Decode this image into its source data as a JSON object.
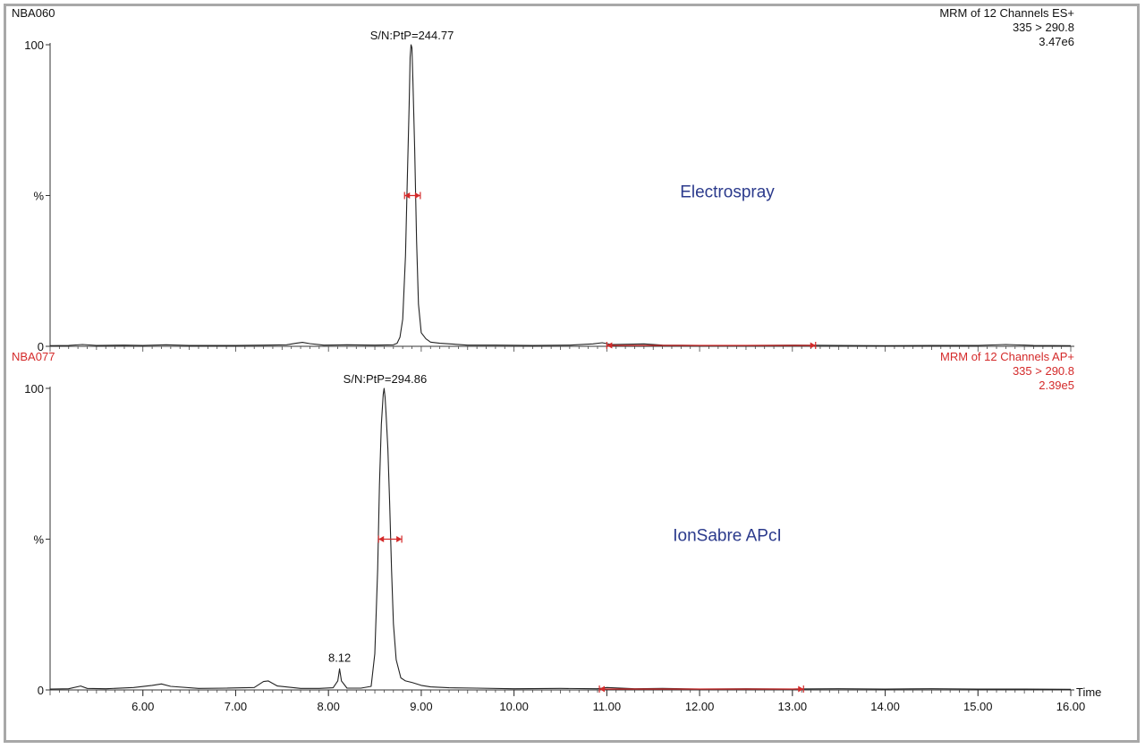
{
  "chart_data": [
    {
      "type": "line",
      "sample": "NBA060",
      "header": [
        "MRM of 12 Channels ES+",
        "335 > 290.8",
        "3.47e6"
      ],
      "header_color": "#111111",
      "annotation": "Electrospray",
      "annotation_color": "#2b3a8c",
      "y_ticks": [
        "100",
        "%",
        "0"
      ],
      "ylim": [
        0,
        100
      ],
      "peak_label": "S/N:PtP=244.77",
      "peak_label_x": 8.9,
      "series": {
        "x": [
          5.0,
          5.2,
          5.35,
          5.5,
          5.8,
          6.0,
          6.25,
          6.5,
          6.8,
          7.0,
          7.3,
          7.55,
          7.65,
          7.72,
          7.8,
          7.95,
          8.2,
          8.5,
          8.7,
          8.74,
          8.77,
          8.8,
          8.83,
          8.85,
          8.87,
          8.88,
          8.89,
          8.9,
          8.91,
          8.93,
          8.95,
          8.97,
          9.0,
          9.05,
          9.1,
          9.2,
          9.35,
          9.5,
          9.8,
          10.2,
          10.6,
          10.85,
          10.95,
          11.05,
          11.4,
          11.6,
          12.0,
          12.5,
          13.0,
          13.5,
          14.0,
          14.5,
          15.0,
          15.3,
          15.6,
          16.0
        ],
        "y": [
          0.2,
          0.3,
          0.6,
          0.3,
          0.4,
          0.3,
          0.5,
          0.3,
          0.3,
          0.3,
          0.4,
          0.5,
          1.0,
          1.3,
          0.9,
          0.4,
          0.5,
          0.4,
          0.5,
          1.0,
          3.0,
          9.0,
          30.0,
          55.0,
          80.0,
          96.0,
          100.0,
          99.0,
          88.0,
          65.0,
          35.0,
          14.0,
          4.5,
          2.5,
          1.4,
          1.0,
          0.7,
          0.4,
          0.4,
          0.3,
          0.4,
          0.8,
          1.2,
          0.6,
          0.8,
          0.4,
          0.3,
          0.3,
          0.4,
          0.3,
          0.2,
          0.3,
          0.3,
          0.6,
          0.3,
          0.2
        ]
      },
      "width_marker": [
        8.82,
        8.99
      ],
      "noise_marker": [
        11.0,
        13.25
      ]
    },
    {
      "type": "line",
      "sample": "NBA077",
      "header": [
        "MRM of 12 Channels AP+",
        "335 > 290.8",
        "2.39e5"
      ],
      "header_color": "#d42a2a",
      "annotation": "IonSabre APcI",
      "annotation_color": "#2b3a8c",
      "y_ticks": [
        "100",
        "%",
        "0"
      ],
      "ylim": [
        0,
        100
      ],
      "peak_label": "S/N:PtP=294.86",
      "peak_label_x": 8.61,
      "minor_label": "8.12",
      "minor_label_x": 8.12,
      "series": {
        "x": [
          5.0,
          5.2,
          5.33,
          5.4,
          5.6,
          5.9,
          6.1,
          6.2,
          6.3,
          6.6,
          6.9,
          7.2,
          7.3,
          7.35,
          7.45,
          7.7,
          7.9,
          8.05,
          8.1,
          8.12,
          8.14,
          8.2,
          8.35,
          8.46,
          8.5,
          8.53,
          8.55,
          8.57,
          8.59,
          8.6,
          8.61,
          8.62,
          8.64,
          8.66,
          8.68,
          8.7,
          8.73,
          8.78,
          8.83,
          8.9,
          9.0,
          9.1,
          9.3,
          9.6,
          10.0,
          10.5,
          10.9,
          11.0,
          11.3,
          11.6,
          12.0,
          12.5,
          13.0,
          13.5,
          14.0,
          14.5,
          15.0,
          15.5,
          16.0
        ],
        "y": [
          0.3,
          0.4,
          1.3,
          0.5,
          0.4,
          0.8,
          1.5,
          2.0,
          1.2,
          0.5,
          0.6,
          0.8,
          2.8,
          3.0,
          1.3,
          0.5,
          0.5,
          0.7,
          3.0,
          7.0,
          3.0,
          0.6,
          0.6,
          1.2,
          12.0,
          40.0,
          68.0,
          88.0,
          98.0,
          100.0,
          97.0,
          92.0,
          80.0,
          62.0,
          40.0,
          22.0,
          10.0,
          4.0,
          3.0,
          2.5,
          1.5,
          1.0,
          0.7,
          0.6,
          0.4,
          0.5,
          0.4,
          0.8,
          0.4,
          0.5,
          0.3,
          0.4,
          0.3,
          0.4,
          0.3,
          0.4,
          0.3,
          0.3,
          0.2
        ]
      },
      "width_marker": [
        8.54,
        8.79
      ],
      "noise_marker": [
        10.92,
        13.12
      ]
    }
  ],
  "x_axis": {
    "label": "Time",
    "ticks": [
      6.0,
      7.0,
      8.0,
      9.0,
      10.0,
      11.0,
      12.0,
      13.0,
      14.0,
      15.0,
      16.0
    ],
    "tick_labels": [
      "6.00",
      "7.00",
      "8.00",
      "9.00",
      "10.00",
      "11.00",
      "12.00",
      "13.00",
      "14.00",
      "15.00",
      "16.00"
    ],
    "range": [
      5.0,
      16.0
    ]
  },
  "marker_color": "#d42a2a",
  "trace_color": "#222222"
}
